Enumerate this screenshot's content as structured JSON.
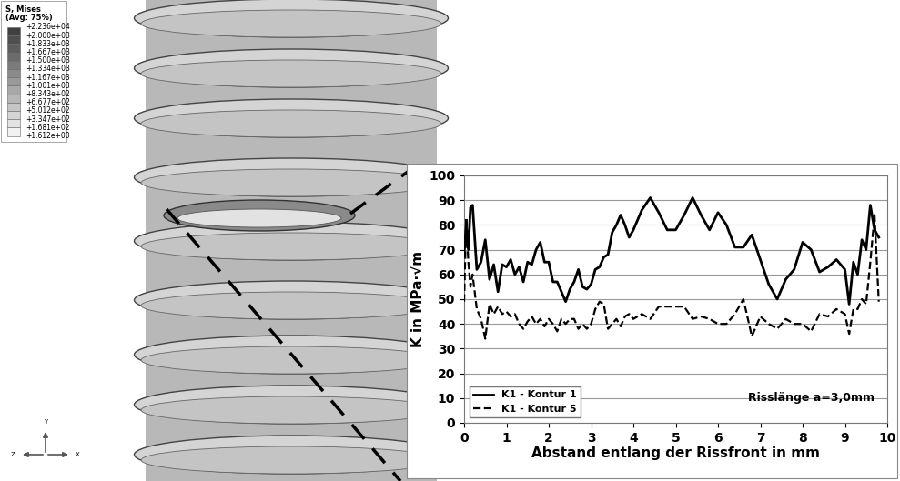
{
  "chart_data": {
    "type": "line",
    "x_label": "Abstand entlang der Rissfront in mm",
    "y_label": "K in MPa·√m",
    "annotation": "Risslänge a=3,0mm",
    "xlim": [
      0,
      10
    ],
    "xticks": [
      0,
      1,
      2,
      3,
      4,
      5,
      6,
      7,
      8,
      9,
      10
    ],
    "ylim": [
      0,
      100
    ],
    "yticks": [
      0,
      10,
      20,
      30,
      40,
      50,
      60,
      70,
      80,
      90,
      100
    ],
    "grid": true,
    "legend": "lower left",
    "x": [
      0,
      0.05,
      0.1,
      0.15,
      0.2,
      0.3,
      0.4,
      0.5,
      0.6,
      0.7,
      0.8,
      0.9,
      1.0,
      1.1,
      1.2,
      1.3,
      1.4,
      1.5,
      1.6,
      1.7,
      1.8,
      1.9,
      2.0,
      2.1,
      2.2,
      2.3,
      2.4,
      2.5,
      2.6,
      2.7,
      2.8,
      2.9,
      3.0,
      3.1,
      3.2,
      3.3,
      3.4,
      3.5,
      3.6,
      3.7,
      3.8,
      3.9,
      4.0,
      4.2,
      4.4,
      4.6,
      4.8,
      5.0,
      5.2,
      5.4,
      5.6,
      5.8,
      6.0,
      6.2,
      6.4,
      6.6,
      6.8,
      7.0,
      7.2,
      7.4,
      7.6,
      7.8,
      8.0,
      8.2,
      8.4,
      8.6,
      8.8,
      9.0,
      9.1,
      9.2,
      9.3,
      9.4,
      9.5,
      9.6,
      9.7,
      9.8
    ],
    "series": [
      {
        "name": "K1 - Kontur 1",
        "color": "#000000",
        "line_style": "solid",
        "values": [
          68,
          80,
          70,
          87,
          88,
          62,
          65,
          74,
          58,
          64,
          53,
          64,
          63,
          66,
          60,
          63,
          57,
          65,
          64,
          70,
          73,
          65,
          65,
          57,
          57,
          53,
          49,
          54,
          57,
          62,
          55,
          54,
          56,
          62,
          63,
          67,
          68,
          77,
          80,
          84,
          80,
          75,
          78,
          86,
          91,
          85,
          78,
          78,
          84,
          91,
          84,
          78,
          85,
          80,
          71,
          71,
          76,
          66,
          56,
          50,
          58,
          62,
          73,
          70,
          61,
          63,
          66,
          62,
          48,
          65,
          60,
          74,
          70,
          88,
          78,
          75
        ]
      },
      {
        "name": "K1 - Kontur 5",
        "color": "#000000",
        "line_style": "dashed",
        "values": [
          49,
          83,
          65,
          55,
          60,
          46,
          42,
          34,
          48,
          44,
          47,
          44,
          45,
          43,
          44,
          40,
          38,
          41,
          43,
          40,
          42,
          39,
          42,
          40,
          37,
          42,
          40,
          42,
          42,
          38,
          40,
          38,
          40,
          46,
          49,
          48,
          38,
          40,
          42,
          39,
          43,
          44,
          42,
          44,
          42,
          47,
          47,
          47,
          47,
          42,
          43,
          42,
          40,
          40,
          44,
          50,
          35,
          43,
          40,
          38,
          42,
          40,
          40,
          37,
          44,
          43,
          46,
          44,
          36,
          46,
          46,
          50,
          48,
          65,
          84,
          49
        ]
      }
    ]
  },
  "contour_legend": {
    "title": "S, Mises",
    "subtitle": "(Avg: 75%)",
    "labels": [
      "+2.236e+04",
      "+2.000e+03",
      "+1.833e+03",
      "+1.667e+03",
      "+1.500e+03",
      "+1.334e+03",
      "+1.167e+03",
      "+1.001e+03",
      "+8.343e+02",
      "+6.677e+02",
      "+5.012e+02",
      "+3.347e+02",
      "+1.681e+02",
      "+1.612e+00"
    ]
  },
  "axis_triad": {
    "up": "Y",
    "left": "Z",
    "right": "X"
  }
}
